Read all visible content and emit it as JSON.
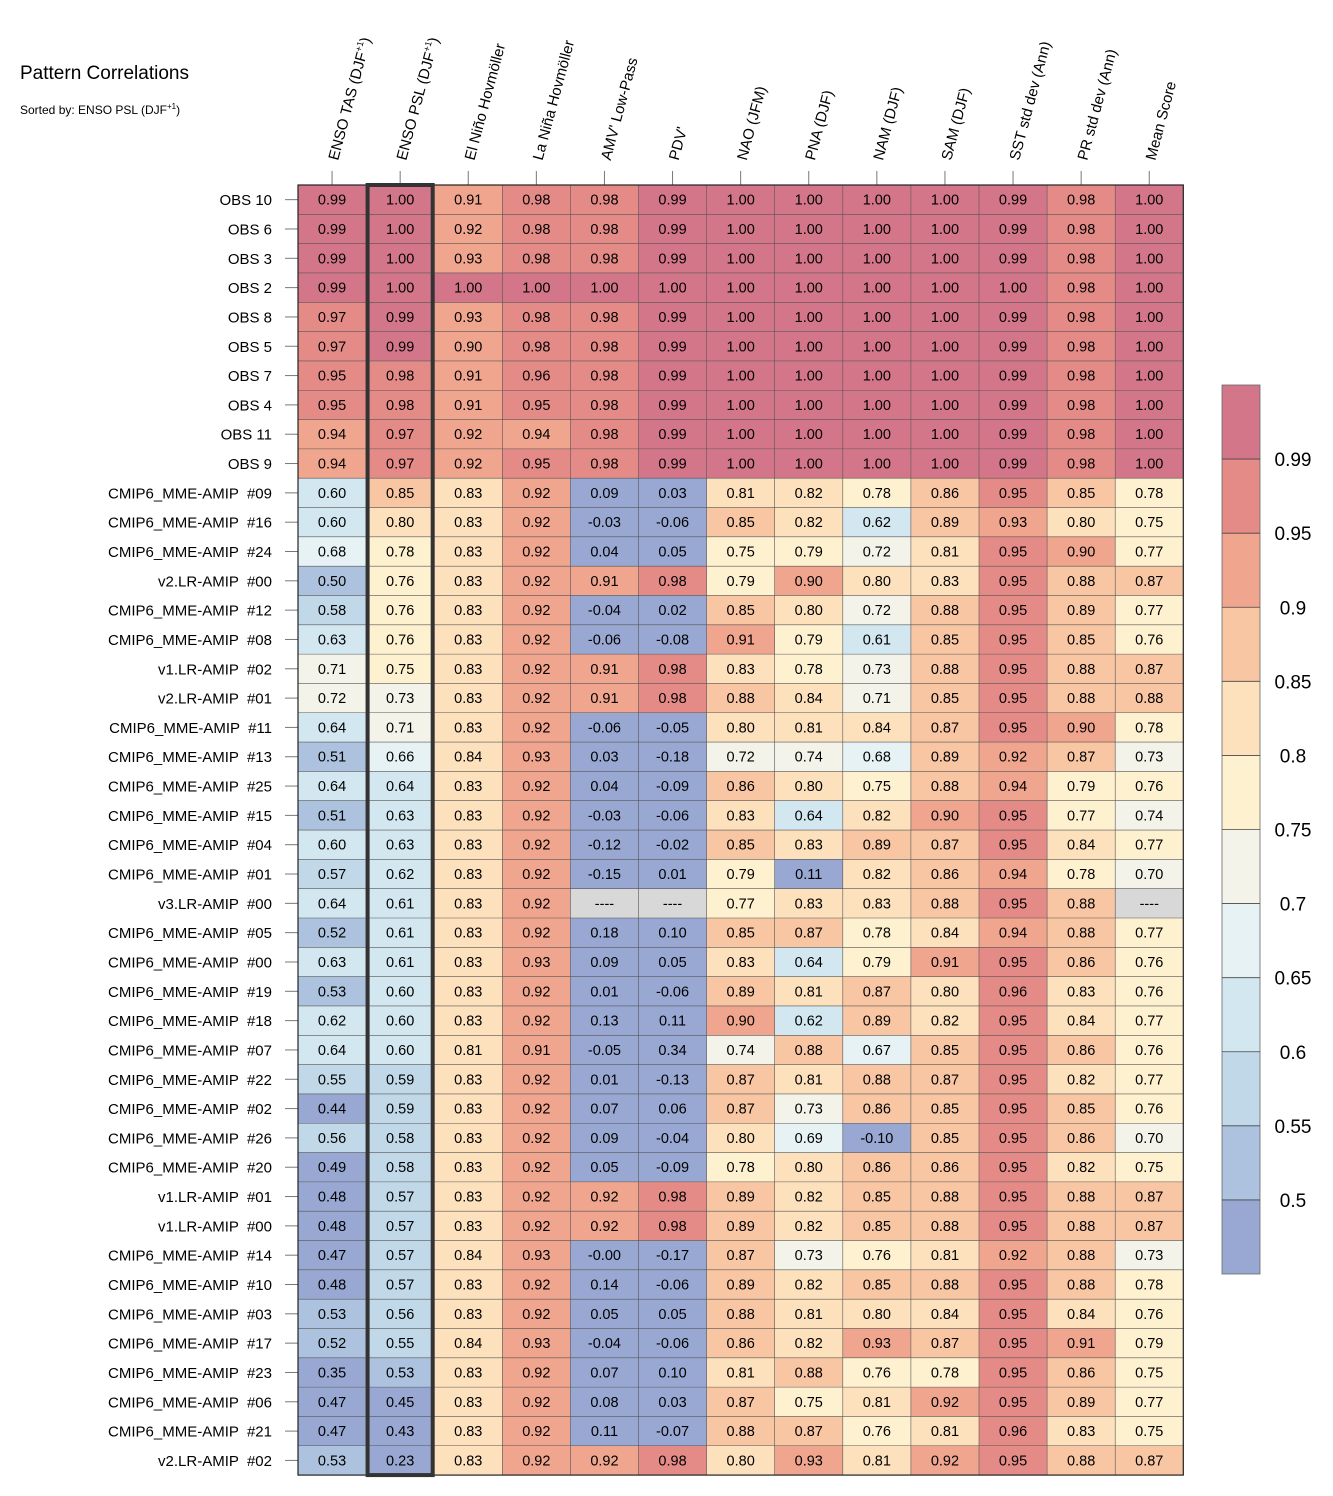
{
  "chart_data": {
    "type": "heatmap",
    "title": "Pattern Correlations",
    "subtitle": "Sorted by: ENSO PSL (DJF",
    "subtitle_sup": "+1",
    "subtitle_close": ")",
    "columns": [
      {
        "label": "ENSO TAS (DJF",
        "sup": "+1",
        "close": ")"
      },
      {
        "label": "ENSO PSL (DJF",
        "sup": "+1",
        "close": ")"
      },
      {
        "label": "El Niño Hovmöller"
      },
      {
        "label": "La Niña Hovmöller"
      },
      {
        "label": "AMV' Low-Pass"
      },
      {
        "label": "PDV'"
      },
      {
        "label": "NAO (JFM)"
      },
      {
        "label": "PNA (DJF)"
      },
      {
        "label": "NAM (DJF)"
      },
      {
        "label": "SAM (DJF)"
      },
      {
        "label": "SST std dev (Ann)"
      },
      {
        "label": "PR std dev (Ann)"
      },
      {
        "label": "Mean Score"
      }
    ],
    "rows": [
      "OBS 10",
      "OBS 6",
      "OBS 3",
      "OBS 2",
      "OBS 8",
      "OBS 5",
      "OBS 7",
      "OBS 4",
      "OBS 11",
      "OBS 9",
      "CMIP6_MME-AMIP  #09",
      "CMIP6_MME-AMIP  #16",
      "CMIP6_MME-AMIP  #24",
      "v2.LR-AMIP  #00",
      "CMIP6_MME-AMIP  #12",
      "CMIP6_MME-AMIP  #08",
      "v1.LR-AMIP  #02",
      "v2.LR-AMIP  #01",
      "CMIP6_MME-AMIP  #11",
      "CMIP6_MME-AMIP  #13",
      "CMIP6_MME-AMIP  #25",
      "CMIP6_MME-AMIP  #15",
      "CMIP6_MME-AMIP  #04",
      "CMIP6_MME-AMIP  #01",
      "v3.LR-AMIP  #00",
      "CMIP6_MME-AMIP  #05",
      "CMIP6_MME-AMIP  #00",
      "CMIP6_MME-AMIP  #19",
      "CMIP6_MME-AMIP  #18",
      "CMIP6_MME-AMIP  #07",
      "CMIP6_MME-AMIP  #22",
      "CMIP6_MME-AMIP  #02",
      "CMIP6_MME-AMIP  #26",
      "CMIP6_MME-AMIP  #20",
      "v1.LR-AMIP  #01",
      "v1.LR-AMIP  #00",
      "CMIP6_MME-AMIP  #14",
      "CMIP6_MME-AMIP  #10",
      "CMIP6_MME-AMIP  #03",
      "CMIP6_MME-AMIP  #17",
      "CMIP6_MME-AMIP  #23",
      "CMIP6_MME-AMIP  #06",
      "CMIP6_MME-AMIP  #21",
      "v2.LR-AMIP  #02"
    ],
    "values": [
      [
        "0.99",
        "1.00",
        "0.91",
        "0.98",
        "0.98",
        "0.99",
        "1.00",
        "1.00",
        "1.00",
        "1.00",
        "0.99",
        "0.98",
        "1.00"
      ],
      [
        "0.99",
        "1.00",
        "0.92",
        "0.98",
        "0.98",
        "0.99",
        "1.00",
        "1.00",
        "1.00",
        "1.00",
        "0.99",
        "0.98",
        "1.00"
      ],
      [
        "0.99",
        "1.00",
        "0.93",
        "0.98",
        "0.98",
        "0.99",
        "1.00",
        "1.00",
        "1.00",
        "1.00",
        "0.99",
        "0.98",
        "1.00"
      ],
      [
        "0.99",
        "1.00",
        "1.00",
        "1.00",
        "1.00",
        "1.00",
        "1.00",
        "1.00",
        "1.00",
        "1.00",
        "1.00",
        "0.98",
        "1.00"
      ],
      [
        "0.97",
        "0.99",
        "0.93",
        "0.98",
        "0.98",
        "0.99",
        "1.00",
        "1.00",
        "1.00",
        "1.00",
        "0.99",
        "0.98",
        "1.00"
      ],
      [
        "0.97",
        "0.99",
        "0.90",
        "0.98",
        "0.98",
        "0.99",
        "1.00",
        "1.00",
        "1.00",
        "1.00",
        "0.99",
        "0.98",
        "1.00"
      ],
      [
        "0.95",
        "0.98",
        "0.91",
        "0.96",
        "0.98",
        "0.99",
        "1.00",
        "1.00",
        "1.00",
        "1.00",
        "0.99",
        "0.98",
        "1.00"
      ],
      [
        "0.95",
        "0.98",
        "0.91",
        "0.95",
        "0.98",
        "0.99",
        "1.00",
        "1.00",
        "1.00",
        "1.00",
        "0.99",
        "0.98",
        "1.00"
      ],
      [
        "0.94",
        "0.97",
        "0.92",
        "0.94",
        "0.98",
        "0.99",
        "1.00",
        "1.00",
        "1.00",
        "1.00",
        "0.99",
        "0.98",
        "1.00"
      ],
      [
        "0.94",
        "0.97",
        "0.92",
        "0.95",
        "0.98",
        "0.99",
        "1.00",
        "1.00",
        "1.00",
        "1.00",
        "0.99",
        "0.98",
        "1.00"
      ],
      [
        "0.60",
        "0.85",
        "0.83",
        "0.92",
        "0.09",
        "0.03",
        "0.81",
        "0.82",
        "0.78",
        "0.86",
        "0.95",
        "0.85",
        "0.78"
      ],
      [
        "0.60",
        "0.80",
        "0.83",
        "0.92",
        "-0.03",
        "-0.06",
        "0.85",
        "0.82",
        "0.62",
        "0.89",
        "0.93",
        "0.80",
        "0.75"
      ],
      [
        "0.68",
        "0.78",
        "0.83",
        "0.92",
        "0.04",
        "0.05",
        "0.75",
        "0.79",
        "0.72",
        "0.81",
        "0.95",
        "0.90",
        "0.77"
      ],
      [
        "0.50",
        "0.76",
        "0.83",
        "0.92",
        "0.91",
        "0.98",
        "0.79",
        "0.90",
        "0.80",
        "0.83",
        "0.95",
        "0.88",
        "0.87"
      ],
      [
        "0.58",
        "0.76",
        "0.83",
        "0.92",
        "-0.04",
        "0.02",
        "0.85",
        "0.80",
        "0.72",
        "0.88",
        "0.95",
        "0.89",
        "0.77"
      ],
      [
        "0.63",
        "0.76",
        "0.83",
        "0.92",
        "-0.06",
        "-0.08",
        "0.91",
        "0.79",
        "0.61",
        "0.85",
        "0.95",
        "0.85",
        "0.76"
      ],
      [
        "0.71",
        "0.75",
        "0.83",
        "0.92",
        "0.91",
        "0.98",
        "0.83",
        "0.78",
        "0.73",
        "0.88",
        "0.95",
        "0.88",
        "0.87"
      ],
      [
        "0.72",
        "0.73",
        "0.83",
        "0.92",
        "0.91",
        "0.98",
        "0.88",
        "0.84",
        "0.71",
        "0.85",
        "0.95",
        "0.88",
        "0.88"
      ],
      [
        "0.64",
        "0.71",
        "0.83",
        "0.92",
        "-0.06",
        "-0.05",
        "0.80",
        "0.81",
        "0.84",
        "0.87",
        "0.95",
        "0.90",
        "0.78"
      ],
      [
        "0.51",
        "0.66",
        "0.84",
        "0.93",
        "0.03",
        "-0.18",
        "0.72",
        "0.74",
        "0.68",
        "0.89",
        "0.92",
        "0.87",
        "0.73"
      ],
      [
        "0.64",
        "0.64",
        "0.83",
        "0.92",
        "0.04",
        "-0.09",
        "0.86",
        "0.80",
        "0.75",
        "0.88",
        "0.94",
        "0.79",
        "0.76"
      ],
      [
        "0.51",
        "0.63",
        "0.83",
        "0.92",
        "-0.03",
        "-0.06",
        "0.83",
        "0.64",
        "0.82",
        "0.90",
        "0.95",
        "0.77",
        "0.74"
      ],
      [
        "0.60",
        "0.63",
        "0.83",
        "0.92",
        "-0.12",
        "-0.02",
        "0.85",
        "0.83",
        "0.89",
        "0.87",
        "0.95",
        "0.84",
        "0.77"
      ],
      [
        "0.57",
        "0.62",
        "0.83",
        "0.92",
        "-0.15",
        "0.01",
        "0.79",
        "0.11",
        "0.82",
        "0.86",
        "0.94",
        "0.78",
        "0.70"
      ],
      [
        "0.64",
        "0.61",
        "0.83",
        "0.92",
        "----",
        "----",
        "0.77",
        "0.83",
        "0.83",
        "0.88",
        "0.95",
        "0.88",
        "----"
      ],
      [
        "0.52",
        "0.61",
        "0.83",
        "0.92",
        "0.18",
        "0.10",
        "0.85",
        "0.87",
        "0.78",
        "0.84",
        "0.94",
        "0.88",
        "0.77"
      ],
      [
        "0.63",
        "0.61",
        "0.83",
        "0.93",
        "0.09",
        "0.05",
        "0.83",
        "0.64",
        "0.79",
        "0.91",
        "0.95",
        "0.86",
        "0.76"
      ],
      [
        "0.53",
        "0.60",
        "0.83",
        "0.92",
        "0.01",
        "-0.06",
        "0.89",
        "0.81",
        "0.87",
        "0.80",
        "0.96",
        "0.83",
        "0.76"
      ],
      [
        "0.62",
        "0.60",
        "0.83",
        "0.92",
        "0.13",
        "0.11",
        "0.90",
        "0.62",
        "0.89",
        "0.82",
        "0.95",
        "0.84",
        "0.77"
      ],
      [
        "0.64",
        "0.60",
        "0.81",
        "0.91",
        "-0.05",
        "0.34",
        "0.74",
        "0.88",
        "0.67",
        "0.85",
        "0.95",
        "0.86",
        "0.76"
      ],
      [
        "0.55",
        "0.59",
        "0.83",
        "0.92",
        "0.01",
        "-0.13",
        "0.87",
        "0.81",
        "0.88",
        "0.87",
        "0.95",
        "0.82",
        "0.77"
      ],
      [
        "0.44",
        "0.59",
        "0.83",
        "0.92",
        "0.07",
        "0.06",
        "0.87",
        "0.73",
        "0.86",
        "0.85",
        "0.95",
        "0.85",
        "0.76"
      ],
      [
        "0.56",
        "0.58",
        "0.83",
        "0.92",
        "0.09",
        "-0.04",
        "0.80",
        "0.69",
        "-0.10",
        "0.85",
        "0.95",
        "0.86",
        "0.70"
      ],
      [
        "0.49",
        "0.58",
        "0.83",
        "0.92",
        "0.05",
        "-0.09",
        "0.78",
        "0.80",
        "0.86",
        "0.86",
        "0.95",
        "0.82",
        "0.75"
      ],
      [
        "0.48",
        "0.57",
        "0.83",
        "0.92",
        "0.92",
        "0.98",
        "0.89",
        "0.82",
        "0.85",
        "0.88",
        "0.95",
        "0.88",
        "0.87"
      ],
      [
        "0.48",
        "0.57",
        "0.83",
        "0.92",
        "0.92",
        "0.98",
        "0.89",
        "0.82",
        "0.85",
        "0.88",
        "0.95",
        "0.88",
        "0.87"
      ],
      [
        "0.47",
        "0.57",
        "0.84",
        "0.93",
        "-0.00",
        "-0.17",
        "0.87",
        "0.73",
        "0.76",
        "0.81",
        "0.92",
        "0.88",
        "0.73"
      ],
      [
        "0.48",
        "0.57",
        "0.83",
        "0.92",
        "0.14",
        "-0.06",
        "0.89",
        "0.82",
        "0.85",
        "0.88",
        "0.95",
        "0.88",
        "0.78"
      ],
      [
        "0.53",
        "0.56",
        "0.83",
        "0.92",
        "0.05",
        "0.05",
        "0.88",
        "0.81",
        "0.80",
        "0.84",
        "0.95",
        "0.84",
        "0.76"
      ],
      [
        "0.52",
        "0.55",
        "0.84",
        "0.93",
        "-0.04",
        "-0.06",
        "0.86",
        "0.82",
        "0.93",
        "0.87",
        "0.95",
        "0.91",
        "0.79"
      ],
      [
        "0.35",
        "0.53",
        "0.83",
        "0.92",
        "0.07",
        "0.10",
        "0.81",
        "0.88",
        "0.76",
        "0.78",
        "0.95",
        "0.86",
        "0.75"
      ],
      [
        "0.47",
        "0.45",
        "0.83",
        "0.92",
        "0.08",
        "0.03",
        "0.87",
        "0.75",
        "0.81",
        "0.92",
        "0.95",
        "0.89",
        "0.77"
      ],
      [
        "0.47",
        "0.43",
        "0.83",
        "0.92",
        "0.11",
        "-0.07",
        "0.88",
        "0.87",
        "0.76",
        "0.81",
        "0.96",
        "0.83",
        "0.75"
      ],
      [
        "0.53",
        "0.23",
        "0.83",
        "0.92",
        "0.92",
        "0.98",
        "0.80",
        "0.93",
        "0.81",
        "0.92",
        "0.95",
        "0.88",
        "0.87"
      ]
    ],
    "highlight_column": 1,
    "missing_label": "----",
    "colorbar": {
      "bounds": [
        0.5,
        0.55,
        0.6,
        0.65,
        0.7,
        0.75,
        0.8,
        0.85,
        0.9,
        0.95,
        0.99
      ],
      "colors": [
        "#98a8d2",
        "#adc2de",
        "#c1d8e8",
        "#d2e7ef",
        "#e7f2f4",
        "#f4f3ea",
        "#fef1cf",
        "#fde1bc",
        "#f8c6a3",
        "#f0a58e",
        "#e58b87",
        "#d4768a"
      ],
      "tick_labels": [
        "0.5",
        "0.55",
        "0.6",
        "0.65",
        "0.7",
        "0.75",
        "0.8",
        "0.85",
        "0.9",
        "0.95",
        "0.99"
      ],
      "missing_color": "#d8d8d8"
    }
  }
}
